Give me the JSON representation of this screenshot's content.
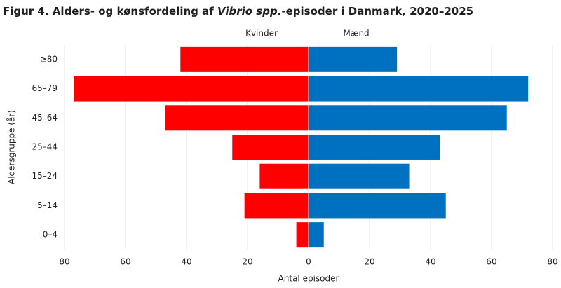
{
  "chart_data": {
    "type": "pyramid",
    "title": [
      "Figur 4. Alders- og kønsfordeling af ",
      "Vibrio spp.",
      "-episoder i Danmark, 2020–2025"
    ],
    "x_label": "Antal episoder",
    "y_label": "Aldersgruppe (år)",
    "categories": [
      "≥80",
      "65–79",
      "45–64",
      "25–44",
      "15–24",
      "5–14",
      "0–4"
    ],
    "series": [
      {
        "name": "Kvinder",
        "color": "#ff0000",
        "values": [
          42,
          77,
          47,
          25,
          16,
          21,
          4
        ]
      },
      {
        "name": "Mænd",
        "color": "#0070c0",
        "values": [
          29,
          72,
          65,
          43,
          33,
          45,
          5
        ]
      }
    ],
    "xlim": [
      -80,
      80
    ],
    "xticks": [
      {
        "value": -80,
        "label": "80"
      },
      {
        "value": -60,
        "label": "60"
      },
      {
        "value": -40,
        "label": "40"
      },
      {
        "value": -20,
        "label": "20"
      },
      0,
      20,
      40,
      60,
      80
    ],
    "grid": true
  }
}
